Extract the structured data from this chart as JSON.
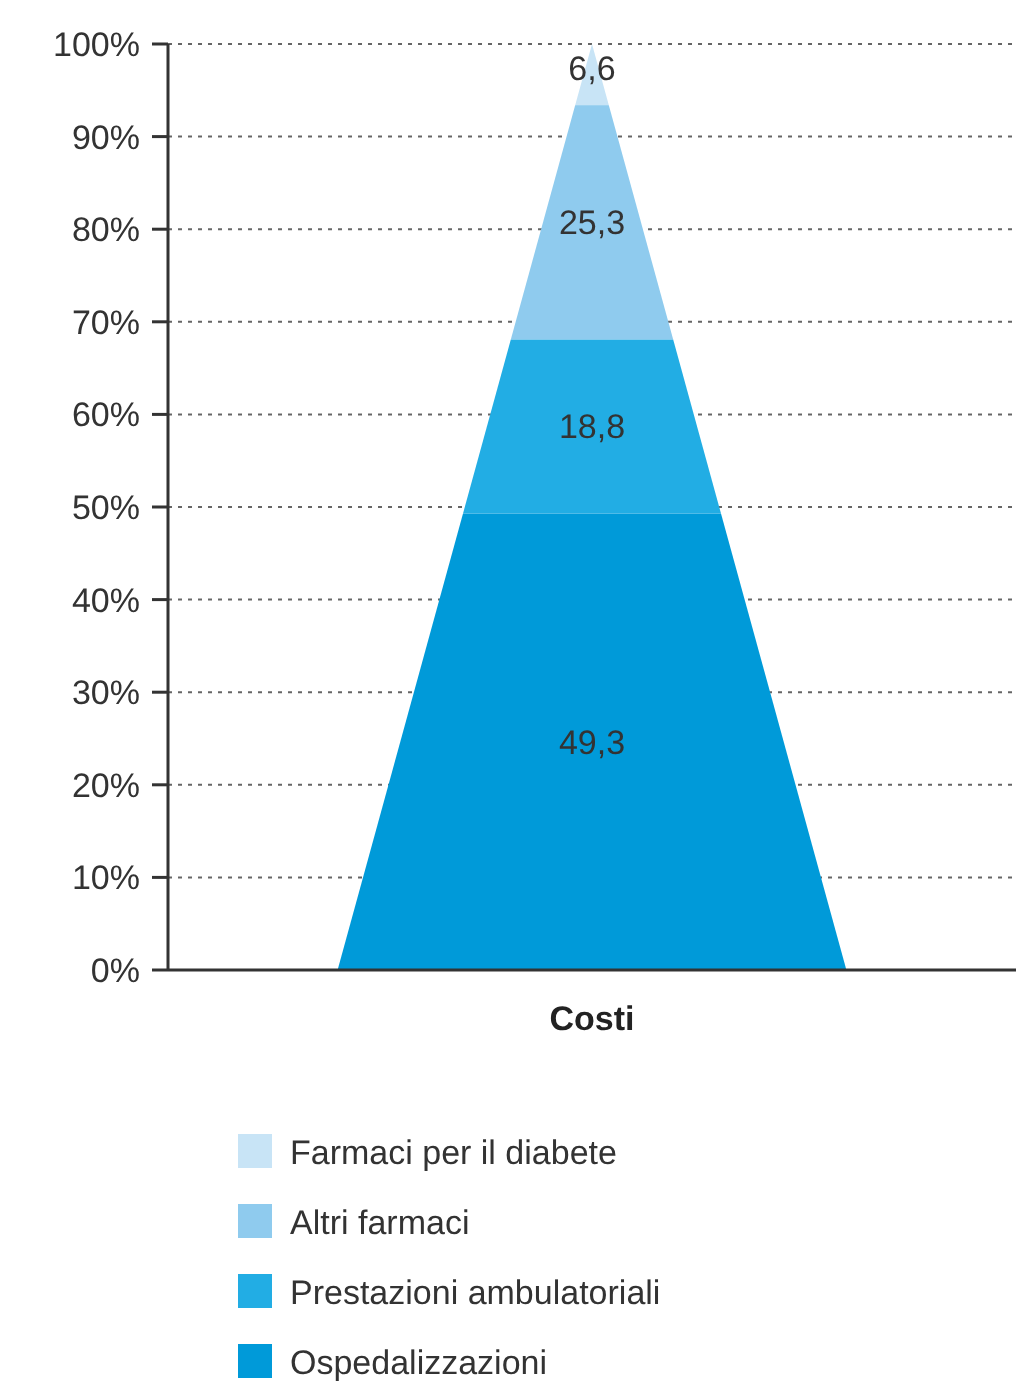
{
  "chart_data": {
    "type": "bar",
    "stacked": true,
    "categories": [
      "Costi"
    ],
    "series": [
      {
        "name": "Ospedalizzazioni",
        "color": "#009ad9",
        "values": [
          49.3
        ],
        "value_labels": [
          "49,3"
        ]
      },
      {
        "name": "Prestazioni ambulatoriali",
        "color": "#22ade4",
        "values": [
          18.8
        ],
        "value_labels": [
          "18,8"
        ]
      },
      {
        "name": "Altri farmaci",
        "color": "#8fcbee",
        "values": [
          25.3
        ],
        "value_labels": [
          "25,3"
        ]
      },
      {
        "name": "Farmaci per il diabete",
        "color": "#c8e4f6",
        "values": [
          6.6
        ],
        "value_labels": [
          "6,6"
        ]
      }
    ],
    "ylim": [
      0,
      100
    ],
    "yticks": [
      {
        "value": 0,
        "label": "0%"
      },
      {
        "value": 10,
        "label": "10%"
      },
      {
        "value": 20,
        "label": "20%"
      },
      {
        "value": 30,
        "label": "30%"
      },
      {
        "value": 40,
        "label": "40%"
      },
      {
        "value": 50,
        "label": "50%"
      },
      {
        "value": 60,
        "label": "60%"
      },
      {
        "value": 70,
        "label": "70%"
      },
      {
        "value": 80,
        "label": "80%"
      },
      {
        "value": 90,
        "label": "90%"
      },
      {
        "value": 100,
        "label": "100%"
      }
    ],
    "grid": "y",
    "legend": "bottom"
  }
}
